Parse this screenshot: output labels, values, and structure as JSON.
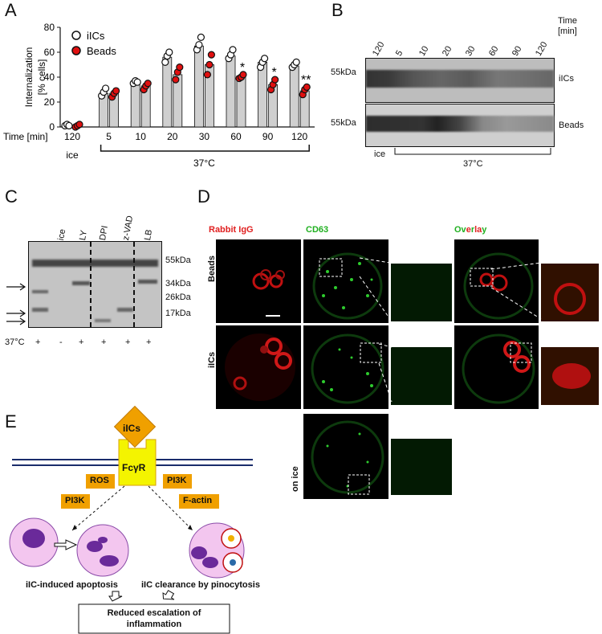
{
  "panels": {
    "a": "A",
    "b": "B",
    "c": "C",
    "d": "D",
    "e": "E"
  },
  "chart_data": {
    "type": "bar",
    "ylabel": "Internalization\n[% cells]",
    "ylabel_lines": [
      "Internalization",
      "[% cells]"
    ],
    "ylim": [
      0,
      80
    ],
    "yticks": [
      0,
      20,
      40,
      60,
      80
    ],
    "categories": [
      "120",
      "5",
      "10",
      "20",
      "30",
      "60",
      "90",
      "120"
    ],
    "xlabel_prefix": "Time [min]",
    "group_labels": {
      "ice": "ice",
      "warm": "37°C"
    },
    "series": [
      {
        "name": "iICs",
        "color": "#ffffff",
        "values": [
          2,
          27,
          36,
          56,
          65,
          57,
          52,
          49
        ],
        "points": [
          [
            1,
            2,
            1
          ],
          [
            25,
            28,
            31
          ],
          [
            35,
            37,
            36
          ],
          [
            52,
            57,
            60
          ],
          [
            62,
            66,
            72
          ],
          [
            55,
            58,
            62
          ],
          [
            48,
            52,
            55
          ],
          [
            48,
            50,
            52
          ]
        ]
      },
      {
        "name": "Beads",
        "color": "#e01010",
        "values": [
          1,
          27,
          33,
          42,
          50,
          41,
          34,
          29
        ],
        "points": [
          [
            0,
            1,
            2
          ],
          [
            24,
            27,
            29
          ],
          [
            30,
            33,
            35
          ],
          [
            38,
            44,
            48
          ],
          [
            42,
            50,
            58
          ],
          [
            39,
            40,
            42
          ],
          [
            30,
            34,
            38
          ],
          [
            26,
            30,
            32
          ]
        ]
      }
    ],
    "significance": [
      "",
      "",
      "",
      "",
      "",
      "*",
      "*",
      "**"
    ]
  },
  "panel_b": {
    "time_header": [
      "Time",
      "[min]"
    ],
    "lanes": [
      "120",
      "5",
      "10",
      "20",
      "30",
      "60",
      "90",
      "120"
    ],
    "marker": "55kDa",
    "rows": [
      "iICs",
      "Beads"
    ],
    "ice": "ice",
    "warm": "37°C"
  },
  "panel_c": {
    "lanes": [
      "ice",
      "LY",
      "DPI",
      "z-VAD",
      "LB"
    ],
    "markers": [
      "55kDa",
      "34kDa",
      "26kDa",
      "17kDa"
    ],
    "temp_label": "37°C",
    "signs": [
      "+",
      "-",
      "+",
      "+",
      "+",
      "+"
    ]
  },
  "panel_d": {
    "col_rabbit": "Rabbit IgG",
    "col_cd63": "CD63",
    "overlay_parts": [
      "Ov",
      "e",
      "r",
      "la",
      "y"
    ],
    "rows": [
      "Beads",
      "iICs",
      "on ice"
    ]
  },
  "panel_e": {
    "complex": "iICs",
    "receptor": "FcγR",
    "ros": "ROS",
    "pi3k_left": "PI3K",
    "pi3k_right": "PI3K",
    "factin": "F-actin",
    "apoptosis": "iIC-induced apoptosis",
    "pinocytosis": "iIC clearance by pinocytosis",
    "outcome_lines": [
      "Reduced escalation of",
      "inflammation"
    ]
  }
}
